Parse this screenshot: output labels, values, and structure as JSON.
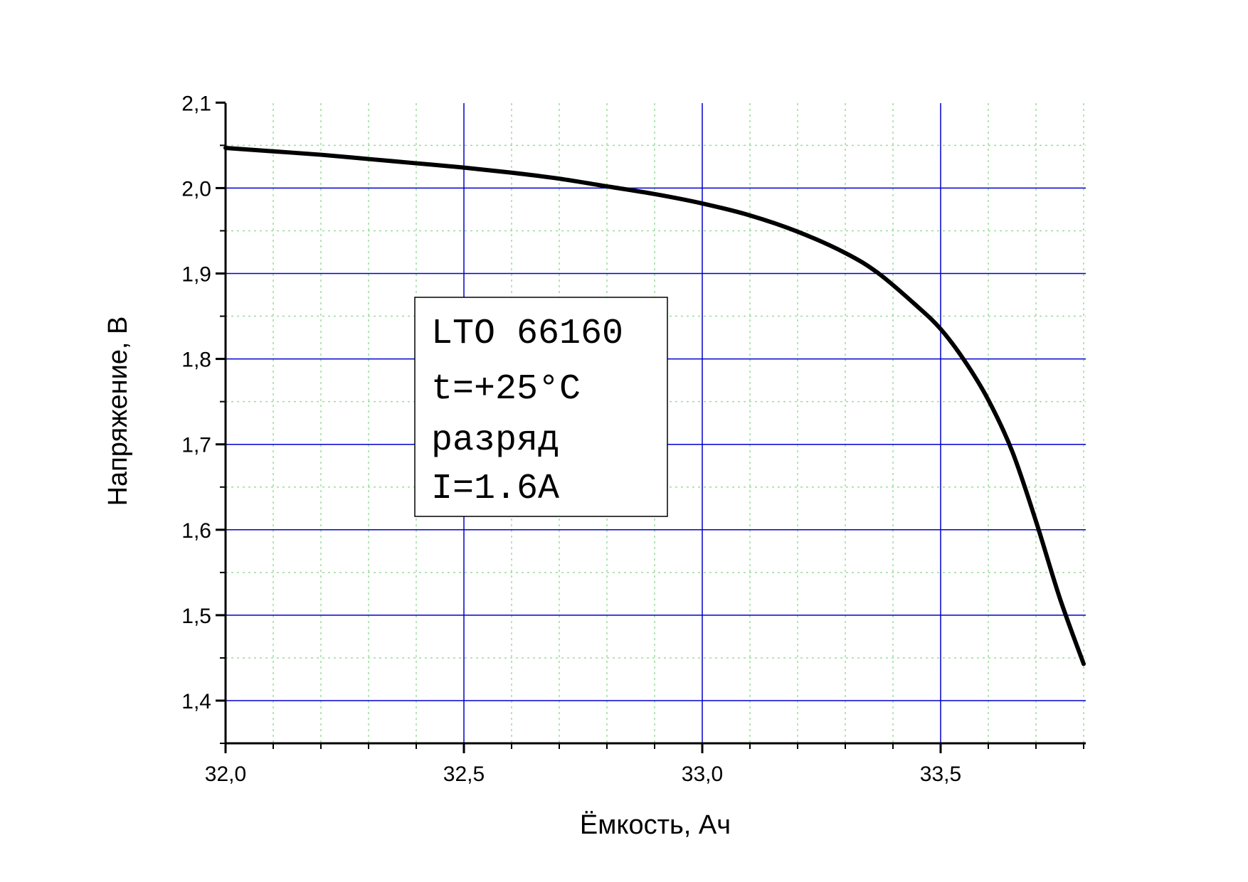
{
  "chart_data": {
    "type": "line",
    "xlabel": "Ёмкость, Ач",
    "ylabel": "Напряжение, В",
    "xlim": [
      32.0,
      33.8
    ],
    "ylim": [
      1.35,
      2.1
    ],
    "x_ticks": [
      32.0,
      32.5,
      33.0,
      33.5
    ],
    "x_tick_labels": [
      "32,0",
      "32,5",
      "33,0",
      "33,5"
    ],
    "y_ticks": [
      1.4,
      1.5,
      1.6,
      1.7,
      1.8,
      1.9,
      2.0,
      2.1
    ],
    "y_tick_labels": [
      "1,4",
      "1,5",
      "1,6",
      "1,7",
      "1,8",
      "1,9",
      "2,0",
      "2,1"
    ],
    "grid": true,
    "major_grid_color": "#0000cc",
    "minor_grid_color": "#99dd99",
    "line_color": "#000000",
    "series": [
      {
        "x": [
          32.0,
          32.1,
          32.2,
          32.3,
          32.4,
          32.5,
          32.6,
          32.7,
          32.8,
          32.9,
          33.0,
          33.1,
          33.2,
          33.3,
          33.37,
          33.45,
          33.5,
          33.55,
          33.6,
          33.65,
          33.7,
          33.75,
          33.8
        ],
        "y": [
          2.047,
          2.043,
          2.039,
          2.034,
          2.029,
          2.024,
          2.018,
          2.011,
          2.002,
          1.993,
          1.982,
          1.968,
          1.949,
          1.924,
          1.9,
          1.862,
          1.835,
          1.798,
          1.752,
          1.692,
          1.61,
          1.52,
          1.443
        ]
      }
    ],
    "annotation": {
      "lines": [
        "LTO 66160",
        "t=+25°C",
        "разряд",
        "I=1.6A"
      ]
    }
  }
}
